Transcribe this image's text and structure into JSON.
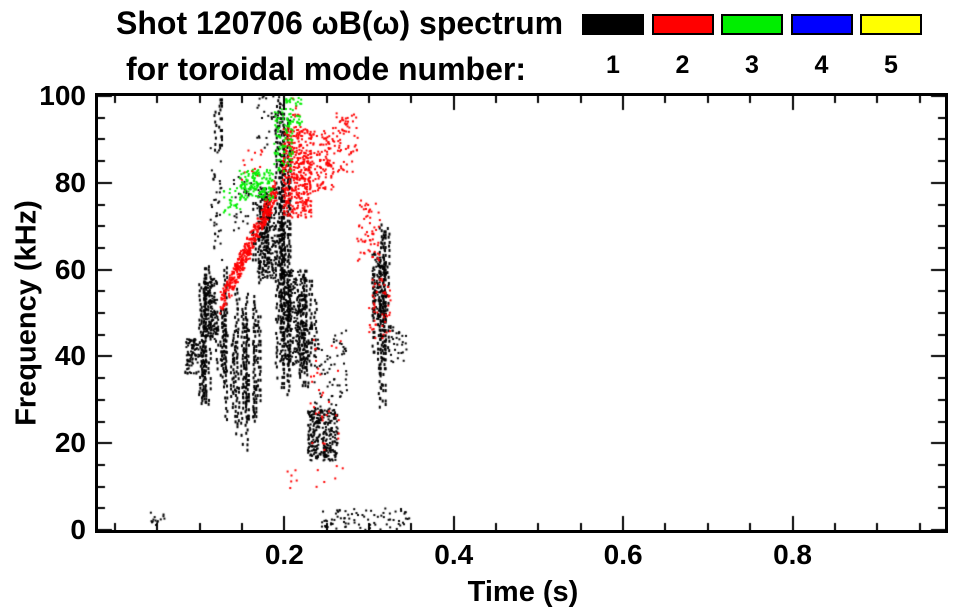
{
  "title": {
    "line1": "Shot 120706 ωB(ω) spectrum",
    "line2": "for toroidal mode number:"
  },
  "legend": {
    "items": [
      {
        "label": "1",
        "color": "#000000"
      },
      {
        "label": "2",
        "color": "#ff0000"
      },
      {
        "label": "3",
        "color": "#00ee00"
      },
      {
        "label": "4",
        "color": "#0000ff"
      },
      {
        "label": "5",
        "color": "#ffff00"
      }
    ]
  },
  "chart_data": {
    "type": "scatter",
    "title": "Shot 120706 ωB(ω) spectrum for toroidal mode number",
    "xlabel": "Time (s)",
    "ylabel": "Frequency (kHz)",
    "xlim": [
      -0.02,
      0.98
    ],
    "ylim": [
      0,
      100
    ],
    "x_ticks": [
      {
        "value": 0.2,
        "label": "0.2"
      },
      {
        "value": 0.4,
        "label": "0.4"
      },
      {
        "value": 0.6,
        "label": "0.6"
      },
      {
        "value": 0.8,
        "label": "0.8"
      }
    ],
    "y_ticks": [
      {
        "value": 0,
        "label": "0"
      },
      {
        "value": 20,
        "label": "20"
      },
      {
        "value": 40,
        "label": "40"
      },
      {
        "value": 60,
        "label": "60"
      },
      {
        "value": 80,
        "label": "80"
      },
      {
        "value": 100,
        "label": "100"
      }
    ],
    "x_minor_step": 0.05,
    "y_minor_step": 5,
    "grid": false,
    "legend_position": "top-right",
    "rng_seed": 7,
    "series": [
      {
        "name": "n=1",
        "color": "#000000",
        "clusters": [
          {
            "kind": "scatter",
            "t": [
              0.083,
              0.099
            ],
            "f": [
              36,
              44
            ],
            "n": 90
          },
          {
            "kind": "streaks",
            "t": [
              0.1,
              0.136
            ],
            "f": [
              24,
              62
            ],
            "cols": 13
          },
          {
            "kind": "scatter",
            "t": [
              0.105,
              0.122
            ],
            "f": [
              44,
              58
            ],
            "n": 160
          },
          {
            "kind": "scatter",
            "t": [
              0.112,
              0.127
            ],
            "f": [
              62,
              88
            ],
            "n": 40
          },
          {
            "kind": "streaks",
            "t": [
              0.116,
              0.126
            ],
            "f": [
              86,
              100
            ],
            "cols": 2
          },
          {
            "kind": "streaks",
            "t": [
              0.135,
              0.17
            ],
            "f": [
              13,
              62
            ],
            "cols": 11
          },
          {
            "kind": "streaks",
            "t": [
              0.163,
              0.2
            ],
            "f": [
              55,
              82
            ],
            "cols": 9
          },
          {
            "kind": "scatter",
            "t": [
              0.168,
              0.19
            ],
            "f": [
              58,
              79
            ],
            "n": 200
          },
          {
            "kind": "streaks",
            "t": [
              0.19,
              0.212
            ],
            "f": [
              30,
              100
            ],
            "cols": 7
          },
          {
            "kind": "streaks",
            "t": [
              0.205,
              0.238
            ],
            "f": [
              33,
              60
            ],
            "cols": 9
          },
          {
            "kind": "scatter",
            "t": [
              0.195,
              0.225
            ],
            "f": [
              38,
              60
            ],
            "n": 250
          },
          {
            "kind": "scatter",
            "t": [
              0.228,
              0.263
            ],
            "f": [
              16,
              28
            ],
            "n": 300
          },
          {
            "kind": "scatter",
            "t": [
              0.235,
              0.275
            ],
            "f": [
              28,
              46
            ],
            "n": 70
          },
          {
            "kind": "streaks",
            "t": [
              0.303,
              0.323
            ],
            "f": [
              28,
              76
            ],
            "cols": 7
          },
          {
            "kind": "scatter",
            "t": [
              0.304,
              0.32
            ],
            "f": [
              48,
              64
            ],
            "n": 120
          },
          {
            "kind": "scatter",
            "t": [
              0.325,
              0.345
            ],
            "f": [
              38,
              47
            ],
            "n": 30
          },
          {
            "kind": "scatter",
            "t": [
              0.04,
              0.06
            ],
            "f": [
              1,
              4
            ],
            "n": 14
          },
          {
            "kind": "scatter",
            "t": [
              0.24,
              0.35
            ],
            "f": [
              0,
              5
            ],
            "n": 80
          },
          {
            "kind": "scatter",
            "t": [
              0.168,
              0.208
            ],
            "f": [
              88,
              100
            ],
            "n": 40
          },
          {
            "kind": "scatter",
            "t": [
              0.14,
              0.163
            ],
            "f": [
              68,
              84
            ],
            "n": 30
          }
        ]
      },
      {
        "name": "n=2",
        "color": "#ff0000",
        "clusters": [
          {
            "kind": "ridge",
            "from": [
              0.125,
              52
            ],
            "to": [
              0.19,
              78
            ],
            "spread": 2.5,
            "n": 420
          },
          {
            "kind": "scatter",
            "t": [
              0.198,
              0.232
            ],
            "f": [
              72,
              93
            ],
            "n": 420
          },
          {
            "kind": "scatter",
            "t": [
              0.228,
              0.258
            ],
            "f": [
              78,
              92
            ],
            "n": 110
          },
          {
            "kind": "scatter",
            "t": [
              0.255,
              0.287
            ],
            "f": [
              82,
              96
            ],
            "n": 70
          },
          {
            "kind": "scatter",
            "t": [
              0.286,
              0.313
            ],
            "f": [
              62,
              76
            ],
            "n": 60
          },
          {
            "kind": "scatter",
            "t": [
              0.3,
              0.326
            ],
            "f": [
              44,
              58
            ],
            "n": 50
          },
          {
            "kind": "scatter",
            "t": [
              0.23,
              0.27
            ],
            "f": [
              18,
              45
            ],
            "n": 35
          },
          {
            "kind": "scatter",
            "t": [
              0.2,
              0.27
            ],
            "f": [
              9,
              15
            ],
            "n": 12
          },
          {
            "kind": "scatter",
            "t": [
              0.208,
              0.222
            ],
            "f": [
              95,
              100
            ],
            "n": 8
          },
          {
            "kind": "scatter",
            "t": [
              0.15,
              0.175
            ],
            "f": [
              80,
              88
            ],
            "n": 15
          }
        ]
      },
      {
        "name": "n=3",
        "color": "#00ee00",
        "clusters": [
          {
            "kind": "scatter",
            "t": [
              0.147,
              0.187
            ],
            "f": [
              76,
              83
            ],
            "n": 150
          },
          {
            "kind": "scatter",
            "t": [
              0.188,
              0.21
            ],
            "f": [
              82,
              97
            ],
            "n": 90
          },
          {
            "kind": "scatter",
            "t": [
              0.2,
              0.221
            ],
            "f": [
              93,
              100
            ],
            "n": 40
          },
          {
            "kind": "scatter",
            "t": [
              0.127,
              0.148
            ],
            "f": [
              72,
              79
            ],
            "n": 25
          }
        ]
      },
      {
        "name": "n=4",
        "color": "#0000ff",
        "clusters": []
      },
      {
        "name": "n=5",
        "color": "#ffff00",
        "clusters": []
      }
    ]
  }
}
